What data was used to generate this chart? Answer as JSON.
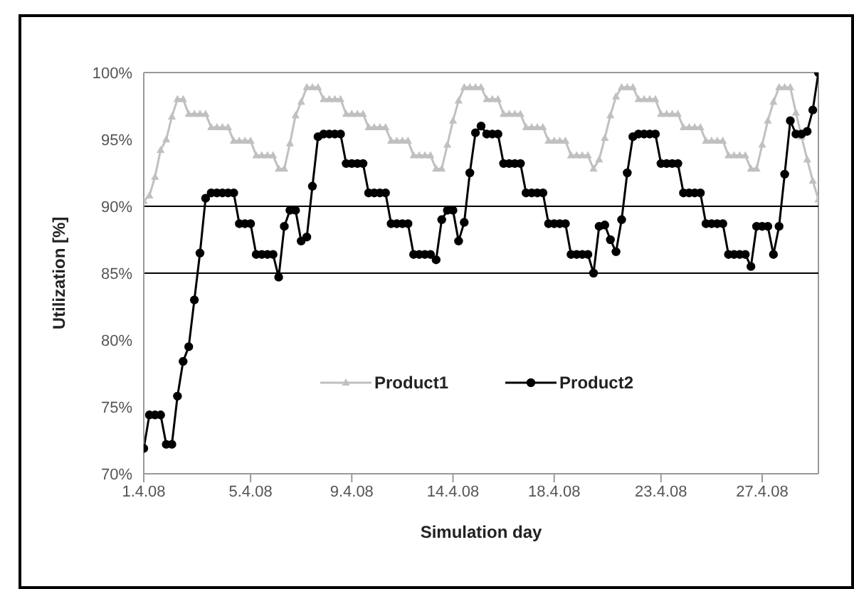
{
  "chart_data": {
    "type": "line",
    "xlabel": "Simulation day",
    "ylabel": "Utilization [%]",
    "categories": [
      "1.4.08",
      null,
      null,
      null,
      null,
      null,
      null,
      null,
      null,
      null,
      null,
      null,
      null,
      null,
      null,
      null,
      null,
      null,
      null,
      "5.4.08",
      null,
      null,
      null,
      null,
      null,
      null,
      null,
      null,
      null,
      null,
      null,
      null,
      null,
      null,
      null,
      null,
      null,
      "9.4.08",
      null,
      null,
      null,
      null,
      null,
      null,
      null,
      null,
      null,
      null,
      null,
      null,
      null,
      null,
      null,
      null,
      null,
      "14.4.08",
      null,
      null,
      null,
      null,
      null,
      null,
      null,
      null,
      null,
      null,
      null,
      null,
      null,
      null,
      null,
      null,
      null,
      "18.4.08",
      null,
      null,
      null,
      null,
      null,
      null,
      null,
      null,
      null,
      null,
      null,
      null,
      null,
      null,
      null,
      null,
      null,
      null,
      "23.4.08",
      null,
      null,
      null,
      null,
      null,
      null,
      null,
      null,
      null,
      null,
      null,
      null,
      null,
      null,
      null,
      null,
      null,
      "27.4.08",
      null,
      null,
      null,
      null,
      null,
      null,
      null,
      null,
      null,
      null
    ],
    "series": [
      {
        "name": "Product1",
        "color": "#c0c0c0",
        "marker": "triangle",
        "values": [
          90.4,
          90.8,
          92.2,
          94.2,
          95,
          96.7,
          98,
          98,
          96.9,
          96.9,
          96.9,
          96.9,
          95.9,
          95.9,
          95.9,
          95.9,
          94.9,
          94.9,
          94.9,
          94.9,
          93.8,
          93.8,
          93.8,
          93.8,
          92.8,
          92.8,
          94.7,
          96.8,
          97.8,
          98.9,
          98.9,
          98.9,
          98,
          98,
          98,
          98,
          96.9,
          96.9,
          96.9,
          96.9,
          95.9,
          95.9,
          95.9,
          95.9,
          94.9,
          94.9,
          94.9,
          94.9,
          93.8,
          93.8,
          93.8,
          93.8,
          92.8,
          92.8,
          94.6,
          96.4,
          97.9,
          98.9,
          98.9,
          98.9,
          98.9,
          98,
          98,
          98,
          96.9,
          96.9,
          96.9,
          96.9,
          95.9,
          95.9,
          95.9,
          95.9,
          94.9,
          94.9,
          94.9,
          94.9,
          93.8,
          93.8,
          93.8,
          93.8,
          92.8,
          93.5,
          95.1,
          96.8,
          98.2,
          98.9,
          98.9,
          98.9,
          98,
          98,
          98,
          98,
          96.9,
          96.9,
          96.9,
          96.9,
          95.9,
          95.9,
          95.9,
          95.9,
          94.9,
          94.9,
          94.9,
          94.9,
          93.8,
          93.8,
          93.8,
          93.8,
          92.8,
          92.8,
          94.6,
          96.4,
          97.8,
          98.9,
          98.9,
          98.9,
          97,
          95.2,
          93.5,
          91.9,
          90.5
        ]
      },
      {
        "name": "Product2",
        "color": "#000000",
        "marker": "circle",
        "values": [
          71.9,
          74.4,
          74.4,
          74.4,
          72.2,
          72.2,
          75.8,
          78.4,
          79.5,
          83,
          86.5,
          90.6,
          91,
          91,
          91,
          91,
          91,
          88.7,
          88.7,
          88.7,
          86.4,
          86.4,
          86.4,
          86.4,
          84.7,
          88.5,
          89.7,
          89.7,
          87.4,
          87.7,
          91.5,
          95.2,
          95.4,
          95.4,
          95.4,
          95.4,
          93.2,
          93.2,
          93.2,
          93.2,
          91,
          91,
          91,
          91,
          88.7,
          88.7,
          88.7,
          88.7,
          86.4,
          86.4,
          86.4,
          86.4,
          86,
          89,
          89.7,
          89.7,
          87.4,
          88.8,
          92.5,
          95.5,
          96,
          95.4,
          95.4,
          95.4,
          93.2,
          93.2,
          93.2,
          93.2,
          91,
          91,
          91,
          91,
          88.7,
          88.7,
          88.7,
          88.7,
          86.4,
          86.4,
          86.4,
          86.4,
          85,
          88.5,
          88.6,
          87.5,
          86.6,
          89,
          92.5,
          95.2,
          95.4,
          95.4,
          95.4,
          95.4,
          93.2,
          93.2,
          93.2,
          93.2,
          91,
          91,
          91,
          91,
          88.7,
          88.7,
          88.7,
          88.7,
          86.4,
          86.4,
          86.4,
          86.4,
          85.5,
          88.5,
          88.5,
          88.5,
          86.4,
          88.5,
          92.4,
          96.4,
          95.4,
          95.4,
          95.6,
          97.2,
          100
        ]
      }
    ],
    "ylim": [
      70,
      100
    ],
    "yticks": [
      {
        "value": 70,
        "label": "70%"
      },
      {
        "value": 75,
        "label": "75%"
      },
      {
        "value": 80,
        "label": "80%"
      },
      {
        "value": 85,
        "label": "85%"
      },
      {
        "value": 90,
        "label": "90%"
      },
      {
        "value": 95,
        "label": "95%"
      },
      {
        "value": 100,
        "label": "100%"
      }
    ],
    "ref_lines": [
      {
        "axis": "y",
        "value": 85,
        "color": "#000000"
      },
      {
        "axis": "y",
        "value": 90,
        "color": "#000000"
      }
    ],
    "grid": false,
    "legend": "bottom",
    "line_style": "solid"
  }
}
